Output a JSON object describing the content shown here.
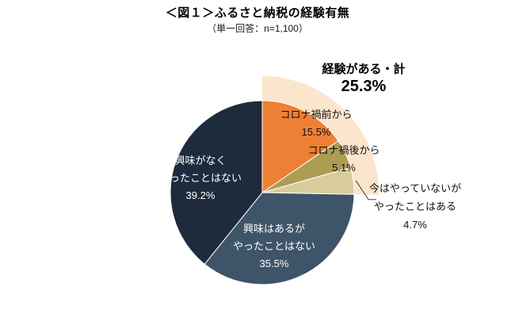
{
  "header": {
    "title": "＜図１＞ふるさと納税の経験有無",
    "subtitle": "（単一回答：n=1,100）"
  },
  "chart_data": {
    "type": "pie",
    "title": "＜図１＞ふるさと納税の経験有無",
    "subtitle": "（単一回答：n=1,100）",
    "start_angle_deg": -90,
    "direction": "clockwise",
    "slices": [
      {
        "label": "コロナ禍前から",
        "value": 15.5,
        "pct_label": "15.5%",
        "color": "#ED8034",
        "text_color": "#111111"
      },
      {
        "label": "コロナ禍後から",
        "value": 5.1,
        "pct_label": "5.1%",
        "color": "#AC9D52",
        "text_color": "#111111"
      },
      {
        "label": "今はやっていないがやったことはある",
        "label_lines": [
          "今はやっていないが",
          "やったことはある"
        ],
        "value": 4.7,
        "pct_label": "4.7%",
        "color": "#D8CC9B",
        "text_color": "#111111"
      },
      {
        "label": "興味はあるがやったことはない",
        "label_lines": [
          "興味はあるが",
          "やったことはない"
        ],
        "value": 35.5,
        "pct_label": "35.5%",
        "color": "#3E5469",
        "text_color": "#FFFFFF"
      },
      {
        "label": "興味がなくやったことはない",
        "label_lines": [
          "興味がなく",
          "やったことはない"
        ],
        "value": 39.2,
        "pct_label": "39.2%",
        "color": "#1E2B3C",
        "text_color": "#FFFFFF"
      }
    ],
    "highlight": {
      "label": "経験がある・計",
      "value": 25.3,
      "pct_label": "25.3%",
      "color": "#FCE5CD",
      "text_color": "#ED7D31",
      "covers_slices": [
        0,
        1,
        2
      ]
    }
  }
}
